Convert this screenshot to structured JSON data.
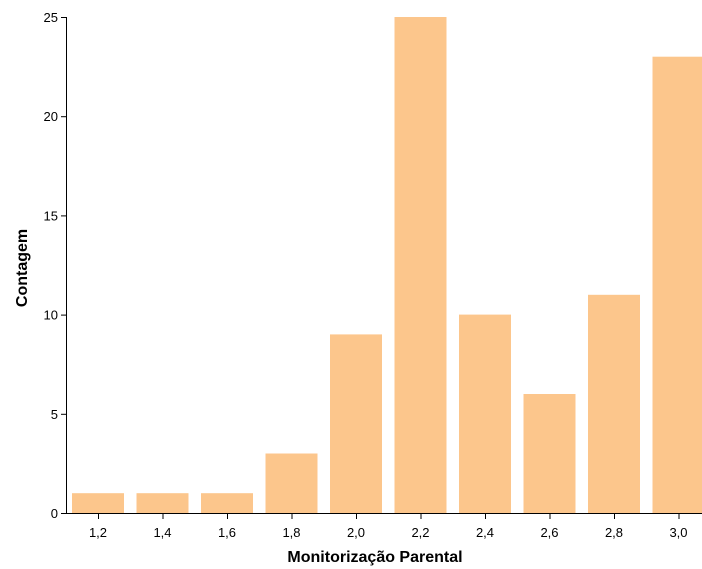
{
  "chart_data": {
    "type": "bar",
    "title": "",
    "xlabel": "Monitorização Parental",
    "ylabel": "Contagem",
    "categories": [
      "1,2",
      "1,4",
      "1,6",
      "1,8",
      "2,0",
      "2,2",
      "2,4",
      "2,6",
      "2,8",
      "3,0"
    ],
    "values": [
      1,
      1,
      1,
      3,
      9,
      25,
      10,
      6,
      11,
      23
    ],
    "ylim": [
      0,
      25
    ],
    "yticks": [
      "0",
      "5",
      "10",
      "15",
      "20",
      "25"
    ],
    "grid": false,
    "legend": "none",
    "bar_color": "#fcc68c"
  }
}
